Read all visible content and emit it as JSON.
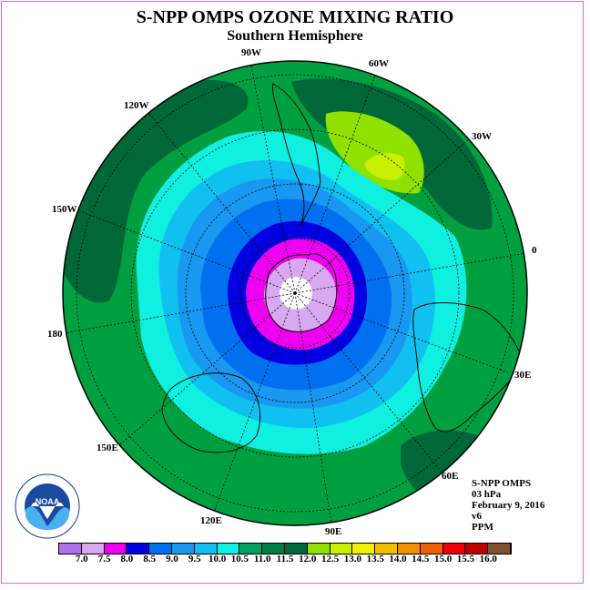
{
  "title": "S-NPP OMPS OZONE MIXING RATIO",
  "subtitle": "Southern Hemisphere",
  "longitude_labels": {
    "lon_90w": "90W",
    "lon_60w": "60W",
    "lon_30w": "30W",
    "lon_0": "0",
    "lon_30e": "30E",
    "lon_60e": "60E",
    "lon_90e": "90E",
    "lon_120e": "120E",
    "lon_150e": "150E",
    "lon_180": "180",
    "lon_150w": "150W",
    "lon_120w": "120W"
  },
  "info": {
    "instrument": "S-NPP OMPS",
    "level": "03 hPa",
    "date": "February 9, 2016",
    "version": "v6",
    "units": "PPM"
  },
  "logo": {
    "text": "NOAA",
    "ring_text": "NATIONAL OCEANIC AND ATMOSPHERIC ADMINISTRATION · U.S. DEPARTMENT OF COMMERCE"
  },
  "colorbar": {
    "colors": [
      "#b070e8",
      "#d8a8f0",
      "#f000f0",
      "#0000e0",
      "#0070f0",
      "#1898f0",
      "#10c0f0",
      "#10f0e0",
      "#00a060",
      "#008040",
      "#006838",
      "#90e000",
      "#c8f000",
      "#f0f000",
      "#f0c000",
      "#f09000",
      "#f06000",
      "#f00000",
      "#c00000",
      "#805030"
    ],
    "tick_labels": [
      "7.0",
      "7.5",
      "8.0",
      "8.5",
      "9.0",
      "9.5",
      "10.0",
      "10.5",
      "11.0",
      "11.5",
      "12.0",
      "12.5",
      "13.0",
      "13.5",
      "14.0",
      "14.5",
      "15.0",
      "15.5",
      "16.0"
    ]
  },
  "map_colors": {
    "background_green": "#00a040",
    "dark_green": "#006838",
    "cyan": "#10f0e0",
    "light_blue": "#10c0f0",
    "mid_blue": "#1898f0",
    "blue": "#0070f0",
    "deep_blue": "#0000e0",
    "magenta": "#f000f0",
    "lavender": "#d8a8f0",
    "yellow_green": "#90e000",
    "yellow_green_light": "#c8f000"
  }
}
